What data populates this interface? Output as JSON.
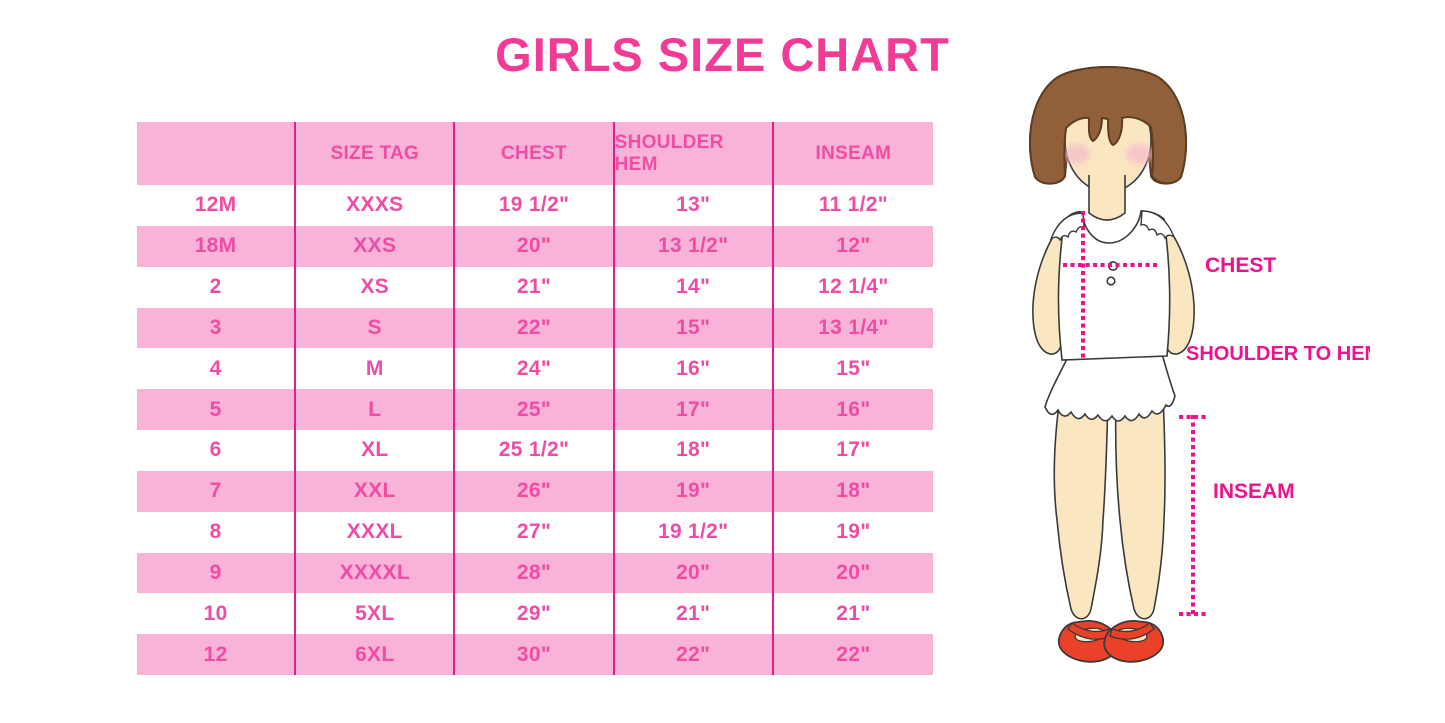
{
  "title": "GIRLS SIZE CHART",
  "colors": {
    "accent": "#F23B96",
    "tableText": "#EF4DA4",
    "rowPink": "#F9B2D8",
    "divider": "#DE1E8C",
    "magenta": "#ED128D",
    "hair": "#91603A",
    "skin": "#FBE6C2",
    "blush": "#F5BFCB",
    "shoe": "#EA4128"
  },
  "table": {
    "columns": [
      "",
      "SIZE TAG",
      "CHEST",
      "SHOULDER HEM",
      "INSEAM"
    ],
    "rows": [
      [
        "12M",
        "XXXS",
        "19 1/2\"",
        "13\"",
        "11 1/2\""
      ],
      [
        "18M",
        "XXS",
        "20\"",
        "13 1/2\"",
        "12\""
      ],
      [
        "2",
        "XS",
        "21\"",
        "14\"",
        "12 1/4\""
      ],
      [
        "3",
        "S",
        "22\"",
        "15\"",
        "13 1/4\""
      ],
      [
        "4",
        "M",
        "24\"",
        "16\"",
        "15\""
      ],
      [
        "5",
        "L",
        "25\"",
        "17\"",
        "16\""
      ],
      [
        "6",
        "XL",
        "25 1/2\"",
        "18\"",
        "17\""
      ],
      [
        "7",
        "XXL",
        "26\"",
        "19\"",
        "18\""
      ],
      [
        "8",
        "XXXL",
        "27\"",
        "19 1/2\"",
        "19\""
      ],
      [
        "9",
        "XXXXL",
        "28\"",
        "20\"",
        "20\""
      ],
      [
        "10",
        "5XL",
        "29\"",
        "21\"",
        "21\""
      ],
      [
        "12",
        "6XL",
        "30\"",
        "22\"",
        "22\""
      ]
    ]
  },
  "figure": {
    "labels": {
      "chest": "CHEST",
      "shoulder_to_hem": "SHOULDER TO HEM",
      "inseam": "INSEAM"
    }
  }
}
